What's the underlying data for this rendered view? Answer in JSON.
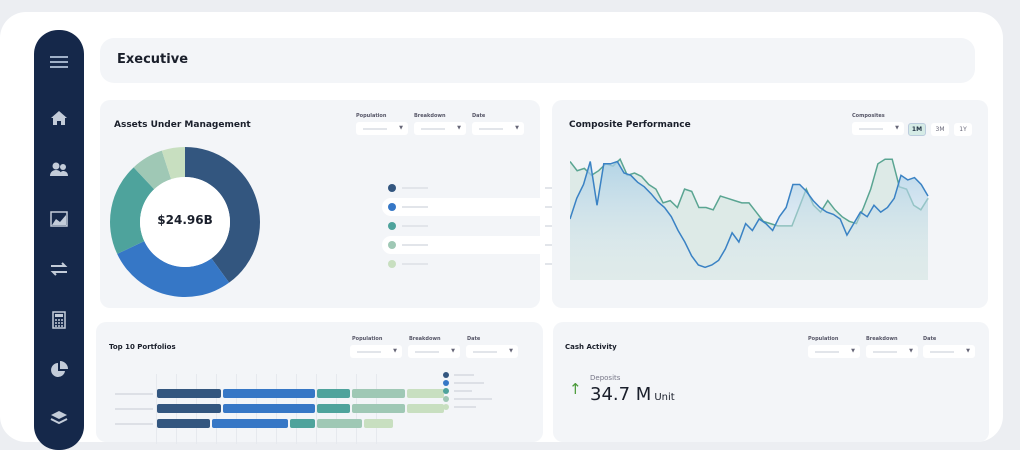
{
  "header": {
    "title": "Executive"
  },
  "sidebar": {
    "items": [
      "menu-icon",
      "home-icon",
      "users-icon",
      "area-chart-icon",
      "transfer-icon",
      "calculator-icon",
      "pie-chart-icon",
      "layers-icon"
    ]
  },
  "colors": {
    "navy": "#33567f",
    "blue": "#3677c6",
    "teal": "#4ea39c",
    "sage": "#9fc8b5",
    "pale": "#c8dfc0",
    "sidebar": "#15284a",
    "up_arrow": "#4a9a3a"
  },
  "aum": {
    "title": "Assets Under Management",
    "filters": [
      {
        "label": "Population"
      },
      {
        "label": "Breakdown"
      },
      {
        "label": "Date"
      }
    ],
    "total": "$24.96B",
    "segments": [
      0.4,
      0.28,
      0.2,
      0.07,
      0.05
    ],
    "legend": [
      {
        "unit": "USD"
      },
      {
        "unit": "USD"
      },
      {
        "unit": "USD"
      },
      {
        "unit": "USD"
      },
      {
        "unit": "USD"
      }
    ]
  },
  "composite": {
    "title": "Composite Performance",
    "filter_label": "Composites",
    "ranges": [
      "1M",
      "3M",
      "1Y"
    ],
    "active_range": "1M",
    "chart_data": {
      "type": "area",
      "series": [
        {
          "values": [
            40,
            58,
            70,
            90,
            52,
            88,
            88,
            90,
            80,
            78,
            72,
            68,
            62,
            55,
            50,
            42,
            30,
            20,
            8,
            0,
            -2,
            0,
            4,
            14,
            28,
            20,
            36,
            30,
            40,
            36,
            30,
            42,
            50,
            70,
            70,
            64,
            56,
            50,
            46,
            44,
            40,
            26,
            36,
            46,
            42,
            52,
            46,
            50,
            58,
            78,
            74,
            76,
            70,
            60
          ]
        },
        {
          "values": [
            90,
            82,
            84,
            78,
            82,
            88,
            86,
            92,
            78,
            80,
            77,
            70,
            66,
            54,
            56,
            50,
            66,
            64,
            50,
            50,
            48,
            60,
            58,
            56,
            54,
            54,
            46,
            38,
            36,
            34,
            34,
            34,
            50,
            66,
            52,
            46,
            56,
            48,
            42,
            38,
            36,
            50,
            66,
            88,
            92,
            92,
            68,
            66,
            52,
            48,
            58
          ]
        }
      ]
    }
  },
  "top10": {
    "title": "Top 10 Portfolios",
    "filters": [
      {
        "label": "Population"
      },
      {
        "label": "Breakdown"
      },
      {
        "label": "Date"
      }
    ],
    "rows": [
      [
        0.17,
        0.24,
        0.09,
        0.14,
        0.1
      ],
      [
        0.17,
        0.24,
        0.09,
        0.14,
        0.1
      ],
      [
        0.14,
        0.2,
        0.07,
        0.12,
        0.08
      ]
    ]
  },
  "cash": {
    "title": "Cash Activity",
    "filters": [
      {
        "label": "Population"
      },
      {
        "label": "Breakdown"
      },
      {
        "label": "Date"
      }
    ],
    "metric_label": "Deposits",
    "metric_value": "34.7 M",
    "metric_unit": "Unit"
  }
}
